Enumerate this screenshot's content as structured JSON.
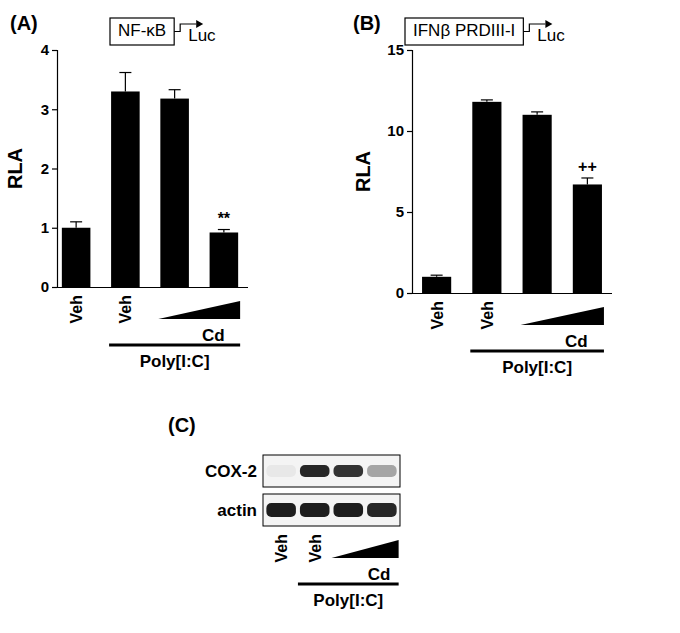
{
  "chart_data": [
    {
      "type": "bar",
      "panel": "(A)",
      "construct": {
        "promoter": "NF-κB",
        "reporter": "Luc"
      },
      "ylabel": "RLA",
      "categories": [
        "Veh",
        "Veh",
        null,
        null
      ],
      "values": [
        1.0,
        3.3,
        3.18,
        0.92
      ],
      "errors": [
        0.1,
        0.32,
        0.15,
        0.05
      ],
      "color": "#000000",
      "ylim": [
        0,
        4
      ],
      "yticks": [
        0,
        1,
        2,
        3,
        4
      ],
      "annotations": [
        {
          "text": "**",
          "index": 3
        }
      ],
      "groups": [
        {
          "label": "Cd",
          "start": 2,
          "end": 3,
          "marker": "ramp"
        },
        {
          "label": "Poly[I:C]",
          "start": 1,
          "end": 3,
          "marker": "line"
        }
      ]
    },
    {
      "type": "bar",
      "panel": "(B)",
      "construct": {
        "promoter": "IFNβ PRDIII-I",
        "reporter": "Luc"
      },
      "ylabel": "RLA",
      "categories": [
        "Veh",
        "Veh",
        null,
        null
      ],
      "values": [
        1.0,
        11.8,
        11.0,
        6.7
      ],
      "errors": [
        0.1,
        0.12,
        0.18,
        0.4
      ],
      "color": "#000000",
      "ylim": [
        0,
        15
      ],
      "yticks": [
        0,
        5,
        10,
        15
      ],
      "annotations": [
        {
          "text": "++",
          "index": 3
        }
      ],
      "groups": [
        {
          "label": "Cd",
          "start": 2,
          "end": 3,
          "marker": "ramp"
        },
        {
          "label": "Poly[I:C]",
          "start": 1,
          "end": 3,
          "marker": "line"
        }
      ]
    },
    {
      "type": "blot",
      "panel": "(C)",
      "categories": [
        "Veh",
        "Veh",
        null,
        null
      ],
      "rows": [
        {
          "name": "COX-2",
          "values": [
            0.05,
            0.9,
            0.85,
            0.35
          ]
        },
        {
          "name": "actin",
          "values": [
            0.95,
            0.95,
            0.95,
            0.9
          ]
        }
      ],
      "groups": [
        {
          "label": "Cd",
          "start": 2,
          "end": 3,
          "marker": "ramp"
        },
        {
          "label": "Poly[I:C]",
          "start": 1,
          "end": 3,
          "marker": "line"
        }
      ]
    }
  ]
}
